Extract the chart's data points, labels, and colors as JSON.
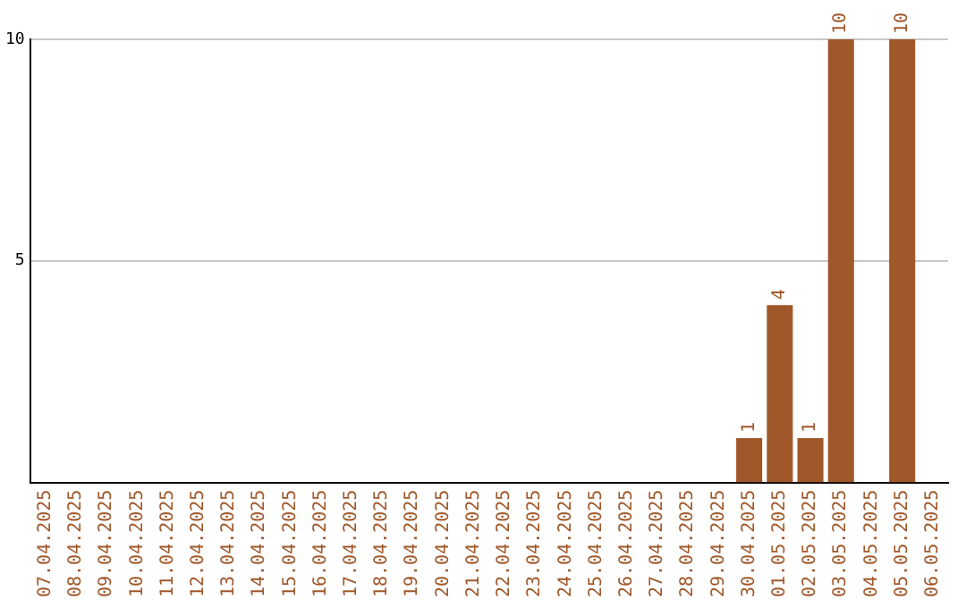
{
  "chart_data": {
    "type": "bar",
    "categories": [
      "07.04.2025",
      "08.04.2025",
      "09.04.2025",
      "10.04.2025",
      "11.04.2025",
      "12.04.2025",
      "13.04.2025",
      "14.04.2025",
      "15.04.2025",
      "16.04.2025",
      "17.04.2025",
      "18.04.2025",
      "19.04.2025",
      "20.04.2025",
      "21.04.2025",
      "22.04.2025",
      "23.04.2025",
      "24.04.2025",
      "25.04.2025",
      "26.04.2025",
      "27.04.2025",
      "28.04.2025",
      "29.04.2025",
      "30.04.2025",
      "01.05.2025",
      "02.05.2025",
      "03.05.2025",
      "04.05.2025",
      "05.05.2025",
      "06.05.2025"
    ],
    "values": [
      0,
      0,
      0,
      0,
      0,
      0,
      0,
      0,
      0,
      0,
      0,
      0,
      0,
      0,
      0,
      0,
      0,
      0,
      0,
      0,
      0,
      0,
      0,
      1,
      4,
      1,
      10,
      0,
      10,
      0
    ],
    "value_labels": [
      null,
      null,
      null,
      null,
      null,
      null,
      null,
      null,
      null,
      null,
      null,
      null,
      null,
      null,
      null,
      null,
      null,
      null,
      null,
      null,
      null,
      null,
      null,
      "1",
      "4",
      "1",
      "10",
      null,
      "10",
      null
    ],
    "color": "#a0582a",
    "ylim": [
      0,
      10
    ],
    "yticks": [
      5,
      10
    ],
    "grid": "y",
    "legend": false
  }
}
